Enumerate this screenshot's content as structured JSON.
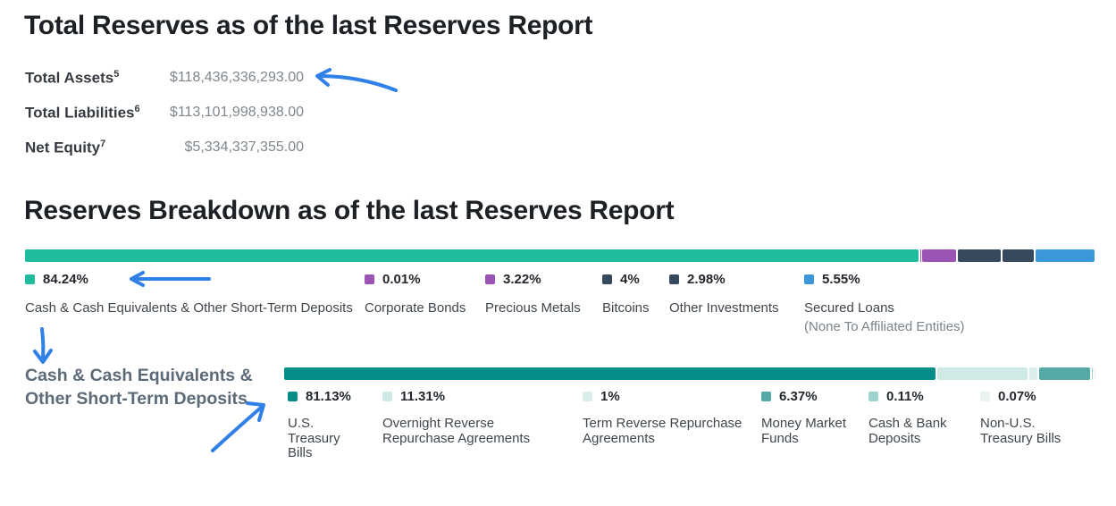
{
  "page": {
    "section1_title": "Total Reserves as of the last Reserves Report",
    "section2_title": "Reserves Breakdown as of the last Reserves Report"
  },
  "totals": {
    "rows": [
      {
        "label": "Total Assets",
        "footnote": "5",
        "value": "$118,436,336,293.00"
      },
      {
        "label": "Total Liabilities",
        "footnote": "6",
        "value": "$113,101,998,938.00"
      },
      {
        "label": "Net Equity",
        "footnote": "7",
        "value": "$5,334,337,355.00"
      }
    ]
  },
  "chart_data": [
    {
      "type": "bar",
      "stacked": true,
      "orientation": "horizontal",
      "unit": "%",
      "title": "Reserves Breakdown as of the last Reserves Report",
      "series": [
        {
          "name": "Cash & Cash Equivalents & Other Short-Term Deposits",
          "value": 84.24,
          "color": "#1fbc9d"
        },
        {
          "name": "Corporate Bonds",
          "value": 0.01,
          "color": "#9b54b4"
        },
        {
          "name": "Precious Metals",
          "value": 3.22,
          "color": "#9b54b4"
        },
        {
          "name": "Bitcoins",
          "value": 4,
          "color": "#37495c"
        },
        {
          "name": "Other Investments",
          "value": 2.98,
          "color": "#37495c"
        },
        {
          "name": "Secured Loans (None To Affiliated Entities)",
          "value": 5.55,
          "color": "#3b96da"
        }
      ]
    },
    {
      "type": "bar",
      "stacked": true,
      "orientation": "horizontal",
      "unit": "%",
      "title": "Cash & Cash Equivalents & Other Short-Term Deposits",
      "series": [
        {
          "name": "U.S. Treasury Bills",
          "value": 81.13,
          "color": "#048d89"
        },
        {
          "name": "Overnight Reverse Repurchase Agreements",
          "value": 11.31,
          "color": "#cfe9e6"
        },
        {
          "name": "Term Reverse Repurchase Agreements",
          "value": 1,
          "color": "#dceeec"
        },
        {
          "name": "Money Market Funds",
          "value": 6.37,
          "color": "#54a9a6"
        },
        {
          "name": "Cash & Bank Deposits",
          "value": 0.11,
          "color": "#9ed3cf"
        },
        {
          "name": "Non-U.S. Treasury Bills",
          "value": 0.07,
          "color": "#e7f3f1"
        }
      ]
    }
  ],
  "main_chart": {
    "legend": [
      {
        "value": "84.24%",
        "lines": [
          "Cash & Cash Equivalents & Other Short-Term Deposits"
        ]
      },
      {
        "value": "0.01%",
        "lines": [
          "Corporate Bonds"
        ]
      },
      {
        "value": "3.22%",
        "lines": [
          "Precious Metals"
        ]
      },
      {
        "value": "4%",
        "lines": [
          "Bitcoins"
        ]
      },
      {
        "value": "2.98%",
        "lines": [
          "Other Investments"
        ]
      },
      {
        "value": "5.55%",
        "lines": [
          "Secured Loans",
          "(None To Affiliated Entities)"
        ]
      }
    ]
  },
  "sub_chart": {
    "section_label_lines": [
      "Cash & Cash Equivalents &",
      "Other Short-Term Deposits"
    ],
    "legend": [
      {
        "value": "81.13%",
        "lines": [
          "U.S.",
          "Treasury",
          "Bills"
        ]
      },
      {
        "value": "11.31%",
        "lines": [
          "Overnight Reverse",
          "Repurchase Agreements"
        ]
      },
      {
        "value": "1%",
        "lines": [
          "Term Reverse Repurchase",
          "Agreements"
        ]
      },
      {
        "value": "6.37%",
        "lines": [
          "Money Market",
          "Funds"
        ]
      },
      {
        "value": "0.11%",
        "lines": [
          "Cash & Bank",
          "Deposits"
        ]
      },
      {
        "value": "0.07%",
        "lines": [
          "Non-U.S.",
          "Treasury Bills"
        ]
      }
    ]
  },
  "annotations": {
    "arrow_color": "#2f80e8",
    "arrows": [
      "points-to-total-assets-value",
      "points-to-main-bar-percentage",
      "points-to-cash-section-label",
      "points-to-sub-bar-legend"
    ]
  }
}
